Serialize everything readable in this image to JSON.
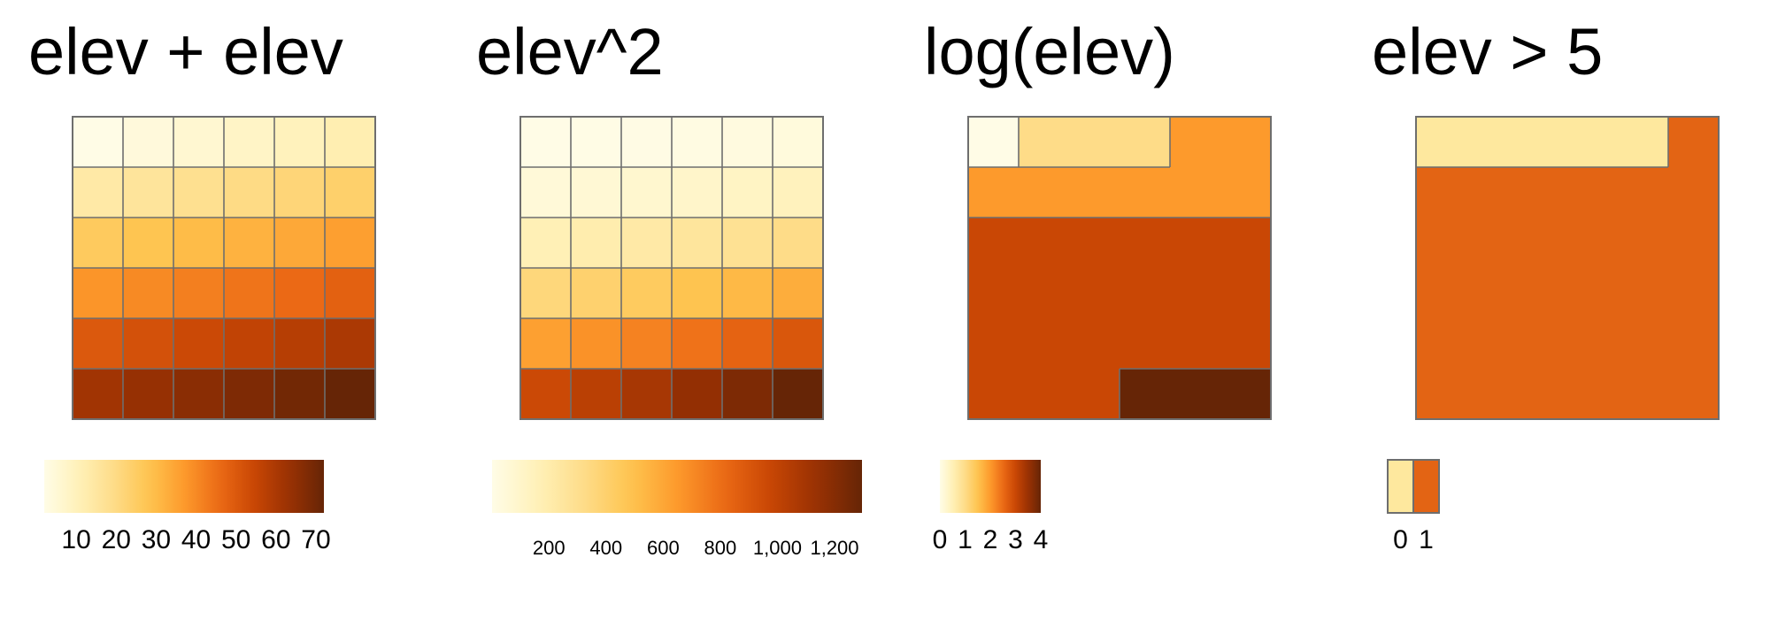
{
  "panels": [
    {
      "title": "elev + elev",
      "raster": {
        "nrow": 6,
        "ncol": 6,
        "values": [
          [
            2,
            4,
            6,
            8,
            10,
            12
          ],
          [
            14,
            16,
            18,
            20,
            22,
            24
          ],
          [
            26,
            28,
            30,
            32,
            34,
            36
          ],
          [
            38,
            40,
            42,
            44,
            46,
            48
          ],
          [
            50,
            52,
            54,
            56,
            58,
            60
          ],
          [
            62,
            64,
            66,
            68,
            70,
            72
          ]
        ],
        "range": [
          2,
          72
        ]
      },
      "legend": {
        "type": "continuous",
        "ticks": [
          "10",
          "20",
          "30",
          "40",
          "50",
          "60",
          "70"
        ],
        "tick_values": [
          10,
          20,
          30,
          40,
          50,
          60,
          70
        ]
      }
    },
    {
      "title": "elev^2",
      "raster": {
        "nrow": 6,
        "ncol": 6,
        "values": [
          [
            1,
            4,
            9,
            16,
            25,
            36
          ],
          [
            49,
            64,
            81,
            100,
            121,
            144
          ],
          [
            169,
            196,
            225,
            256,
            289,
            324
          ],
          [
            361,
            400,
            441,
            484,
            529,
            576
          ],
          [
            625,
            676,
            729,
            784,
            841,
            900
          ],
          [
            961,
            1024,
            1089,
            1156,
            1225,
            1296
          ]
        ],
        "range": [
          1,
          1296
        ]
      },
      "legend": {
        "type": "continuous",
        "ticks": [
          "200",
          "400",
          "600",
          "800",
          "1,000",
          "1,200"
        ],
        "tick_values": [
          200,
          400,
          600,
          800,
          1000,
          1200
        ]
      }
    },
    {
      "title": "log(elev)",
      "raster": {
        "nrow": 6,
        "ncol": 6,
        "values": [
          [
            0,
            1,
            1,
            1,
            2,
            2
          ],
          [
            2,
            2,
            2,
            2,
            2,
            2
          ],
          [
            3,
            3,
            3,
            3,
            3,
            3
          ],
          [
            3,
            3,
            3,
            3,
            3,
            3
          ],
          [
            3,
            3,
            3,
            3,
            3,
            3
          ],
          [
            3,
            3,
            3,
            4,
            4,
            4
          ]
        ],
        "range": [
          0,
          4
        ]
      },
      "legend": {
        "type": "continuous",
        "ticks": [
          "0",
          "1",
          "2",
          "3",
          "4"
        ],
        "tick_values": [
          0,
          1,
          2,
          3,
          4
        ]
      }
    },
    {
      "title": "elev > 5",
      "raster": {
        "nrow": 6,
        "ncol": 6,
        "values": [
          [
            0,
            0,
            0,
            0,
            0,
            1
          ],
          [
            1,
            1,
            1,
            1,
            1,
            1
          ],
          [
            1,
            1,
            1,
            1,
            1,
            1
          ],
          [
            1,
            1,
            1,
            1,
            1,
            1
          ],
          [
            1,
            1,
            1,
            1,
            1,
            1
          ],
          [
            1,
            1,
            1,
            1,
            1,
            1
          ]
        ],
        "range": [
          0,
          1
        ]
      },
      "legend": {
        "type": "categorical",
        "ticks": [
          "0",
          "1"
        ],
        "tick_values": [
          0,
          1
        ],
        "colors": [
          "#FEE89E",
          "#E36414"
        ]
      }
    }
  ],
  "colors": {
    "palette": [
      "#FFFCE6",
      "#FFF1B8",
      "#FEDC88",
      "#FEC44F",
      "#FD9A2C",
      "#EC6A15",
      "#C94705",
      "#9A3103",
      "#662506"
    ],
    "cell_border": "#6E6E6E"
  }
}
